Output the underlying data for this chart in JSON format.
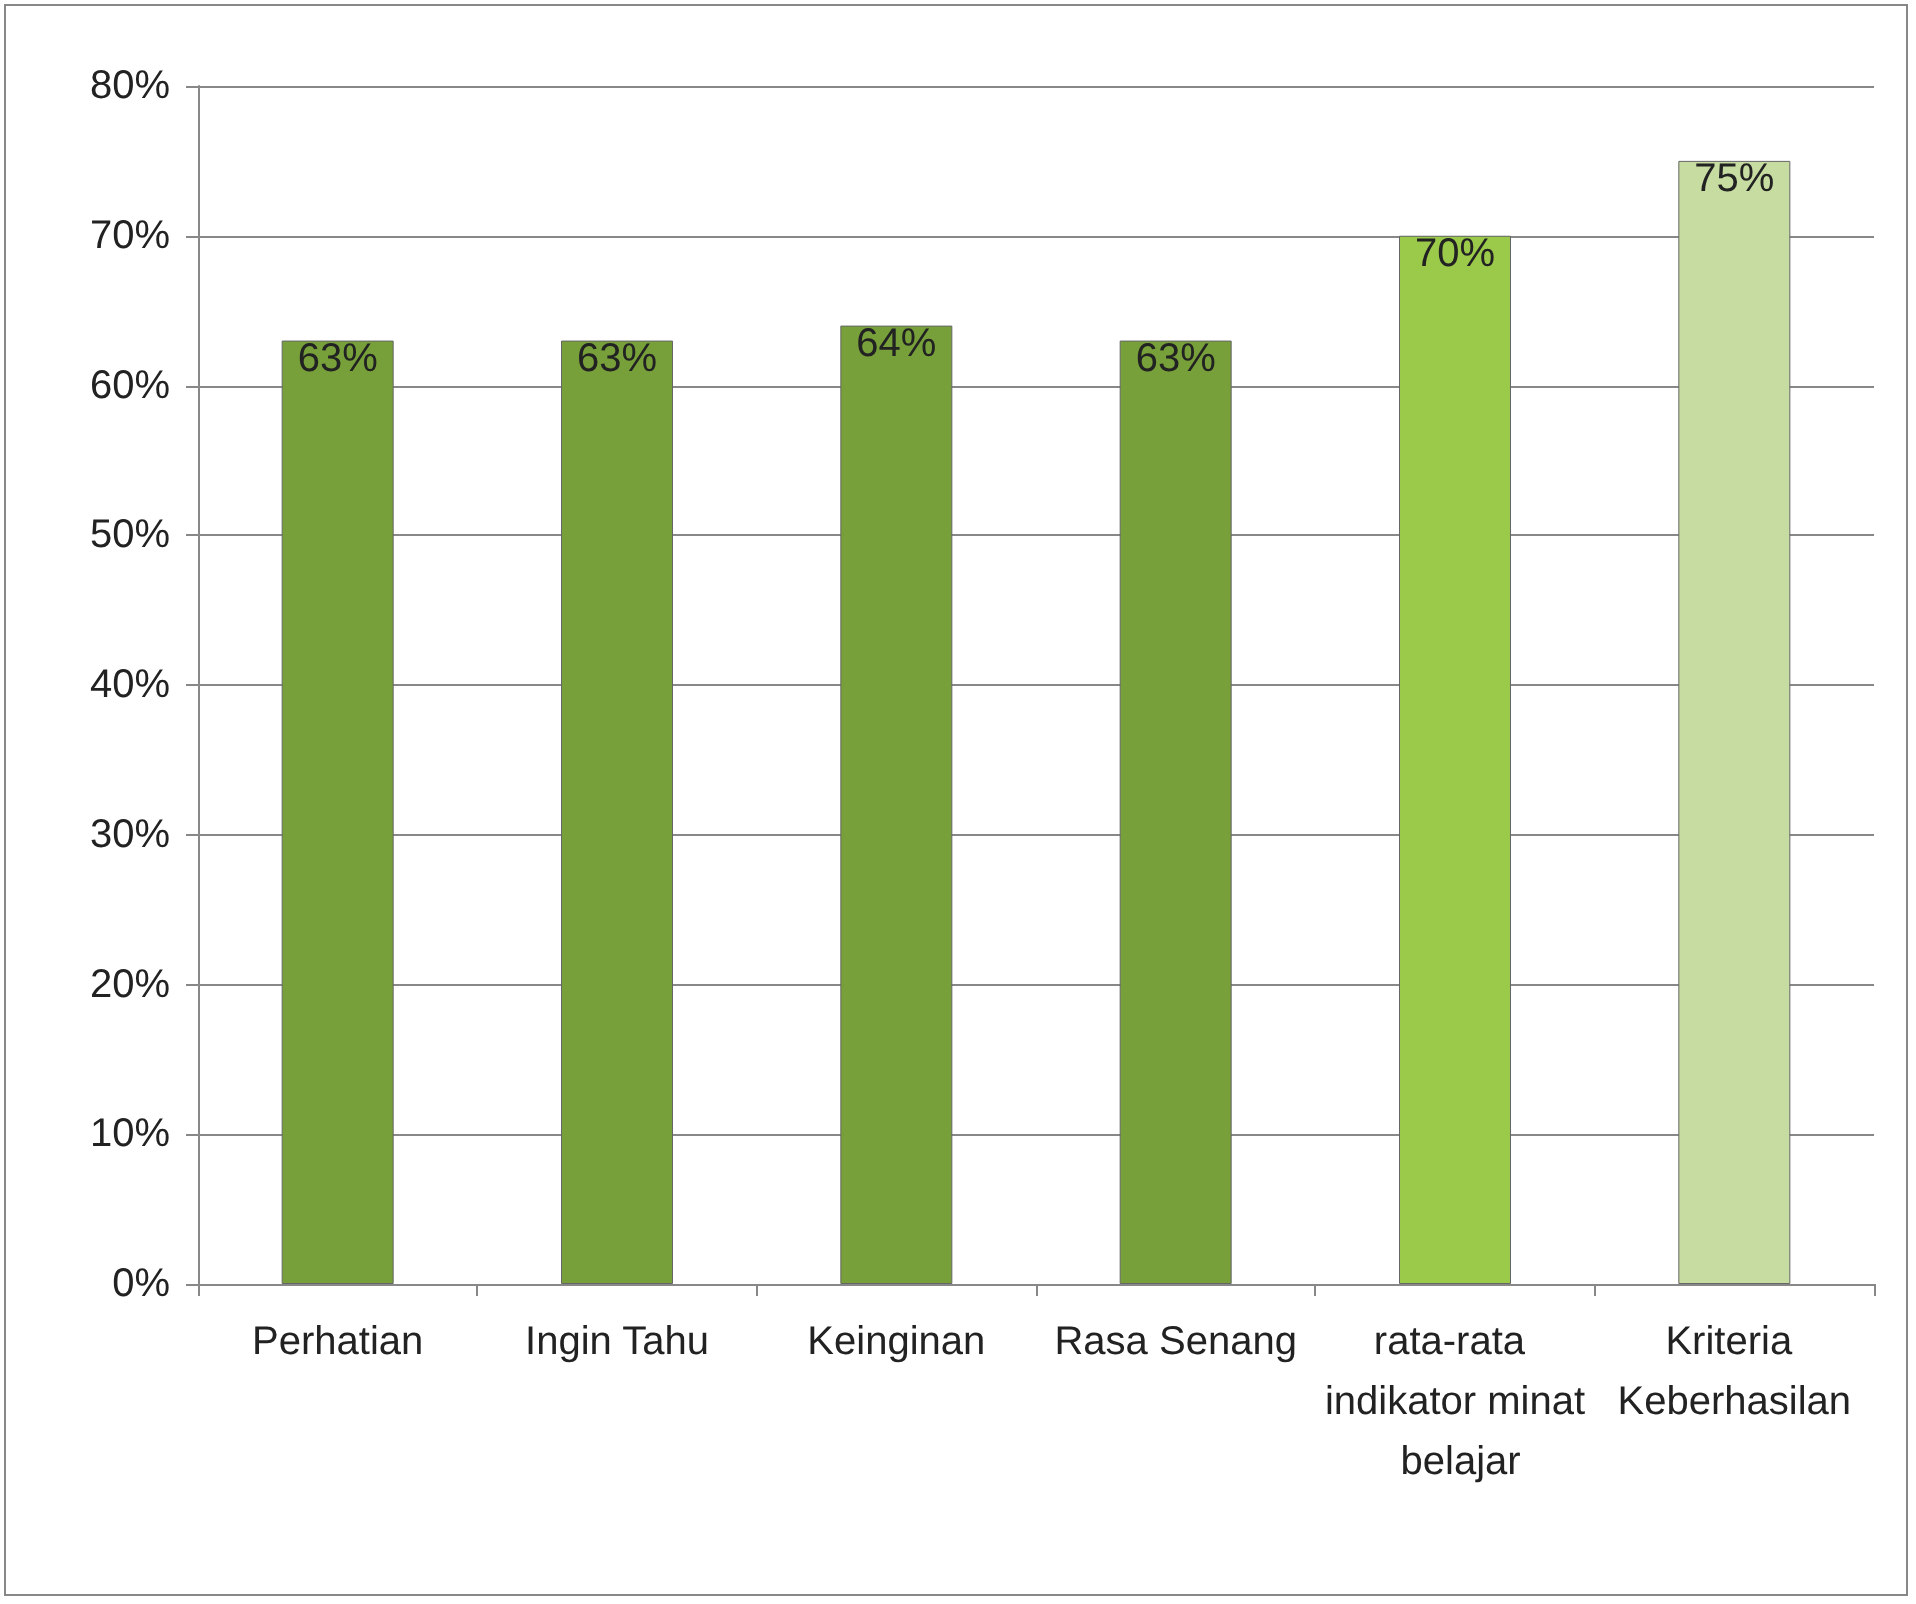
{
  "chart_data": {
    "type": "bar",
    "categories": [
      "Perhatian",
      "Ingin Tahu",
      "Keinginan",
      "Rasa Senang",
      "rata-rata indikator minat belajar",
      "Kriteria Keberhasilan"
    ],
    "values": [
      63,
      63,
      64,
      63,
      70,
      75
    ],
    "colors": [
      "#77a03a",
      "#77a03a",
      "#77a03a",
      "#77a03a",
      "#9bc94a",
      "#c6dca0"
    ],
    "value_labels": [
      "63%",
      "63%",
      "64%",
      "63%",
      "70%",
      "75%"
    ],
    "ylim": [
      0,
      80
    ],
    "yticks": [
      {
        "value": 0,
        "label": "0%"
      },
      {
        "value": 10,
        "label": "10%"
      },
      {
        "value": 20,
        "label": "20%"
      },
      {
        "value": 30,
        "label": "30%"
      },
      {
        "value": 40,
        "label": "40%"
      },
      {
        "value": 50,
        "label": "50%"
      },
      {
        "value": 60,
        "label": "60%"
      },
      {
        "value": 70,
        "label": "70%"
      },
      {
        "value": 80,
        "label": "80%"
      }
    ],
    "grid": "y"
  }
}
